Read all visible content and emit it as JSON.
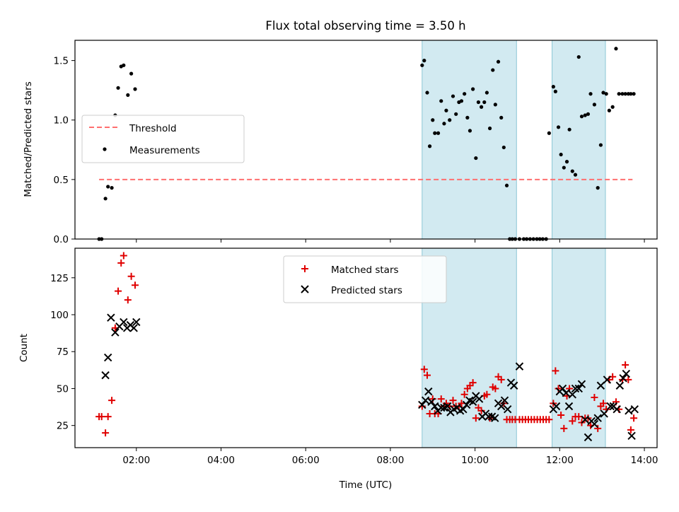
{
  "colors": {
    "shade": "#add8e6",
    "threshold": "#ff6f6f",
    "measurements": "#000000",
    "matched": "#e00000",
    "predicted": "#000000"
  },
  "chart_data": [
    {
      "type": "scatter",
      "title": "Flux total observing time = 3.50 h",
      "xlabel": "",
      "ylabel": "Matched/Predicted stars",
      "xlim": [
        0.55,
        14.3
      ],
      "ylim": [
        0,
        1.67
      ],
      "yticks": [
        0.0,
        0.5,
        1.0,
        1.5
      ],
      "ytick_labels": [
        "0.0",
        "0.5",
        "1.0",
        "1.5"
      ],
      "shaded_spans": [
        [
          8.75,
          10.98
        ],
        [
          11.82,
          13.08
        ]
      ],
      "legend": {
        "position": "center-left",
        "entries": [
          "Threshold",
          "Measurements"
        ]
      },
      "threshold": {
        "name": "Threshold",
        "y": 0.5,
        "x_range": [
          1.12,
          13.72
        ]
      },
      "series": [
        {
          "name": "Measurements",
          "x": [
            1.12,
            1.18,
            1.27,
            1.33,
            1.42,
            1.5,
            1.57,
            1.64,
            1.7,
            1.8,
            1.88,
            1.97,
            8.75,
            8.8,
            8.87,
            8.93,
            9.0,
            9.05,
            9.13,
            9.2,
            9.27,
            9.32,
            9.4,
            9.48,
            9.55,
            9.62,
            9.68,
            9.75,
            9.82,
            9.88,
            9.95,
            10.02,
            10.08,
            10.15,
            10.22,
            10.28,
            10.35,
            10.42,
            10.48,
            10.55,
            10.62,
            10.68,
            10.75,
            10.82,
            10.88,
            10.95,
            11.05,
            11.15,
            11.22,
            11.3,
            11.38,
            11.46,
            11.53,
            11.6,
            11.68,
            11.75,
            11.85,
            11.9,
            11.97,
            12.03,
            12.1,
            12.17,
            12.23,
            12.3,
            12.37,
            12.45,
            12.52,
            12.6,
            12.67,
            12.73,
            12.82,
            12.9,
            12.97,
            13.03,
            13.1,
            13.17,
            13.25,
            13.33,
            13.4,
            13.48,
            13.55,
            13.62,
            13.68,
            13.75
          ],
          "y": [
            0,
            0,
            0.34,
            0.44,
            0.43,
            1.04,
            1.27,
            1.45,
            1.46,
            1.21,
            1.39,
            1.26,
            1.46,
            1.5,
            1.23,
            0.78,
            1.0,
            0.89,
            0.89,
            1.16,
            0.97,
            1.08,
            1.0,
            1.2,
            1.05,
            1.15,
            1.16,
            1.22,
            1.02,
            0.91,
            1.26,
            0.68,
            1.15,
            1.11,
            1.15,
            1.23,
            0.93,
            1.42,
            1.13,
            1.49,
            1.02,
            0.77,
            0.45,
            0,
            0,
            0,
            0,
            0,
            0,
            0,
            0,
            0,
            0,
            0,
            0,
            0.89,
            1.28,
            1.24,
            0.94,
            0.71,
            0.6,
            0.65,
            0.92,
            0.57,
            0.54,
            1.53,
            1.03,
            1.04,
            1.05,
            1.22,
            1.13,
            0.43,
            0.79,
            1.23,
            1.22,
            1.08,
            1.11,
            1.6,
            1.22,
            1.22,
            1.22,
            1.22,
            1.22,
            1.22
          ]
        }
      ]
    },
    {
      "type": "scatter",
      "xlabel": "Time (UTC)",
      "ylabel": "Count",
      "xlim": [
        0.55,
        14.3
      ],
      "ylim": [
        10,
        145
      ],
      "yticks": [
        25,
        50,
        75,
        100,
        125
      ],
      "ytick_labels": [
        "25",
        "50",
        "75",
        "100",
        "125"
      ],
      "xticks": [
        2,
        4,
        6,
        8,
        10,
        12,
        14
      ],
      "xtick_labels": [
        "02:00",
        "04:00",
        "06:00",
        "08:00",
        "10:00",
        "12:00",
        "14:00"
      ],
      "shaded_spans": [
        [
          8.75,
          10.98
        ],
        [
          11.82,
          13.08
        ]
      ],
      "legend": {
        "position": "upper-center",
        "entries": [
          "Matched stars",
          "Predicted stars"
        ]
      },
      "series": [
        {
          "name": "Matched stars",
          "marker": "plus",
          "x": [
            1.12,
            1.18,
            1.27,
            1.33,
            1.42,
            1.5,
            1.57,
            1.64,
            1.7,
            1.8,
            1.88,
            1.97,
            8.75,
            8.8,
            8.87,
            8.93,
            9.0,
            9.05,
            9.13,
            9.2,
            9.27,
            9.32,
            9.4,
            9.48,
            9.55,
            9.62,
            9.68,
            9.75,
            9.82,
            9.88,
            9.95,
            10.02,
            10.08,
            10.15,
            10.22,
            10.28,
            10.35,
            10.42,
            10.48,
            10.55,
            10.62,
            10.68,
            10.75,
            10.82,
            10.88,
            10.95,
            11.05,
            11.12,
            11.19,
            11.26,
            11.33,
            11.4,
            11.47,
            11.54,
            11.61,
            11.68,
            11.75,
            11.85,
            11.9,
            11.97,
            12.03,
            12.1,
            12.17,
            12.23,
            12.3,
            12.37,
            12.45,
            12.52,
            12.6,
            12.67,
            12.73,
            12.82,
            12.9,
            12.97,
            13.03,
            13.1,
            13.17,
            13.25,
            13.33,
            13.4,
            13.48,
            13.55,
            13.62,
            13.68,
            13.75
          ],
          "y": [
            31,
            31,
            20,
            31,
            42,
            91,
            116,
            135,
            140,
            110,
            126,
            120,
            38,
            63,
            59,
            33,
            43,
            33,
            33,
            43,
            38,
            40,
            38,
            42,
            38,
            38,
            40,
            46,
            50,
            52,
            54,
            30,
            37,
            35,
            45,
            46,
            30,
            51,
            50,
            58,
            56,
            40,
            29,
            29,
            29,
            29,
            29,
            29,
            29,
            29,
            29,
            29,
            29,
            29,
            29,
            29,
            29,
            40,
            62,
            50,
            32,
            23,
            45,
            50,
            28,
            31,
            31,
            27,
            30,
            30,
            25,
            44,
            23,
            38,
            40,
            36,
            56,
            58,
            41,
            36,
            56,
            66,
            56,
            22,
            30
          ]
        },
        {
          "name": "Predicted stars",
          "marker": "x",
          "x": [
            1.27,
            1.33,
            1.4,
            1.5,
            1.6,
            1.7,
            1.78,
            1.86,
            1.94,
            2.0,
            8.75,
            8.83,
            8.9,
            8.97,
            9.05,
            9.12,
            9.2,
            9.27,
            9.35,
            9.42,
            9.5,
            9.57,
            9.65,
            9.72,
            9.8,
            9.87,
            9.95,
            10.02,
            10.1,
            10.17,
            10.25,
            10.32,
            10.4,
            10.47,
            10.55,
            10.62,
            10.7,
            10.77,
            10.85,
            10.92,
            11.05,
            11.85,
            11.92,
            12.0,
            12.07,
            12.15,
            12.22,
            12.3,
            12.37,
            12.45,
            12.52,
            12.6,
            12.67,
            12.75,
            12.82,
            12.9,
            12.97,
            13.05,
            13.12,
            13.2,
            13.27,
            13.35,
            13.42,
            13.5,
            13.57,
            13.63,
            13.7,
            13.77
          ],
          "y": [
            59,
            71,
            98,
            88,
            92,
            95,
            91,
            93,
            91,
            95,
            39,
            42,
            48,
            41,
            38,
            35,
            37,
            37,
            38,
            34,
            36,
            37,
            35,
            36,
            39,
            42,
            41,
            45,
            43,
            31,
            33,
            31,
            31,
            30,
            40,
            38,
            42,
            36,
            54,
            52,
            65,
            36,
            38,
            48,
            50,
            47,
            38,
            46,
            50,
            50,
            53,
            29,
            17,
            28,
            26,
            30,
            52,
            33,
            56,
            38,
            38,
            36,
            52,
            57,
            60,
            35,
            18,
            36
          ]
        }
      ]
    }
  ]
}
